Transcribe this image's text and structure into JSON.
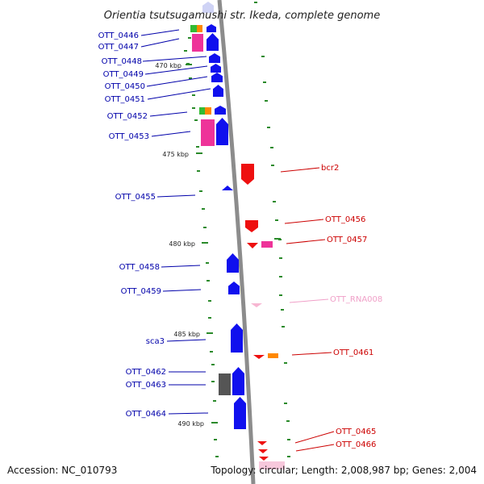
{
  "title": "Orientia tsutsugamushi str. Ikeda, complete genome",
  "accession": "Accession: NC_010793",
  "summary": "Topology: circular; Length: 2,008,987 bp; Genes: 2,004",
  "colors": {
    "backbone": "#8c8c8c",
    "forward_label": "#0000aa",
    "reverse_label": "#cc0000",
    "rna_label": "#f0a0c8",
    "tick": "#2a8a2a",
    "blue_gene": "#1010ee",
    "red_gene": "#ee1010",
    "pink_gene": "#ee3399",
    "gray_gene": "#555555"
  },
  "kbp_marks": [
    "470 kbp",
    "475 kbp",
    "480 kbp",
    "485 kbp",
    "490 kbp"
  ],
  "forward_genes": [
    {
      "label": "OTT_0446"
    },
    {
      "label": "OTT_0447"
    },
    {
      "label": "OTT_0448"
    },
    {
      "label": "OTT_0449"
    },
    {
      "label": "OTT_0450"
    },
    {
      "label": "OTT_0451"
    },
    {
      "label": "OTT_0452"
    },
    {
      "label": "OTT_0453"
    },
    {
      "label": "OTT_0455"
    },
    {
      "label": "OTT_0458"
    },
    {
      "label": "OTT_0459"
    },
    {
      "label": "sca3"
    },
    {
      "label": "OTT_0462"
    },
    {
      "label": "OTT_0463"
    },
    {
      "label": "OTT_0464"
    }
  ],
  "reverse_genes": [
    {
      "label": "bcr2"
    },
    {
      "label": "OTT_0456"
    },
    {
      "label": "OTT_0457"
    },
    {
      "label": "OTT_RNA008"
    },
    {
      "label": "OTT_0461"
    },
    {
      "label": "OTT_0465"
    },
    {
      "label": "OTT_0466"
    }
  ]
}
